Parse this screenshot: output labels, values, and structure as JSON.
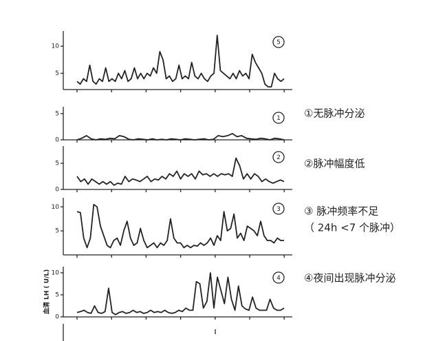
{
  "chart_data": [
    {
      "type": "line",
      "panel_label": "5",
      "ylim": [
        2,
        12.8
      ],
      "yticks": [
        5,
        10
      ],
      "series": [
        {
          "color": "#222",
          "values": [
            3.5,
            3,
            4,
            3.5,
            6.5,
            3.5,
            3,
            4,
            3.5,
            6,
            3.5,
            4,
            3.5,
            5,
            4,
            5.5,
            3.5,
            4,
            6,
            4,
            5,
            4,
            5,
            4.5,
            6,
            5,
            9,
            7.5,
            4,
            4.5,
            3.5,
            4,
            6.5,
            4,
            4.5,
            4,
            7,
            4.5,
            4,
            5,
            4,
            3.5,
            4.5,
            5,
            12,
            5.5,
            5,
            4.5,
            4,
            5,
            4,
            5.5,
            4.5,
            5,
            4,
            8.5,
            7,
            6,
            5,
            3,
            2.5,
            2.5,
            5,
            4,
            3.5,
            4
          ]
        }
      ]
    },
    {
      "type": "line",
      "panel_label": "1",
      "ylim": [
        0,
        6.3
      ],
      "yticks": [
        0,
        5
      ],
      "annotations": [
        "①无脉冲分泌"
      ],
      "series": [
        {
          "color": "#222",
          "values": [
            0,
            0.3,
            0.8,
            0.2,
            0,
            0.2,
            0.1,
            0.3,
            0.2,
            0.8,
            0.6,
            0.1,
            0,
            0.2,
            0.1,
            0,
            0.2,
            0,
            0.1,
            0,
            0.2,
            0.1,
            0,
            0.2,
            0.1,
            0,
            0.1,
            0.2,
            0,
            0.1,
            0.8,
            0.6,
            0.8,
            1.2,
            0.6,
            0.8,
            0.3,
            0.2,
            0.1,
            0.3,
            0.2,
            0,
            0.3,
            0.2,
            0
          ]
        }
      ]
    },
    {
      "type": "line",
      "panel_label": "2",
      "ylim": [
        0,
        8.3
      ],
      "yticks": [
        0,
        5
      ],
      "annotations": [
        "②脉冲幅度低"
      ],
      "series": [
        {
          "color": "#222",
          "values": [
            2.5,
            1.5,
            2,
            1,
            2,
            1.5,
            1,
            1.5,
            1,
            1.5,
            0.8,
            1.2,
            1,
            2.5,
            1.5,
            2,
            1.8,
            1.5,
            2,
            2.5,
            1.5,
            2,
            1.8,
            2.5,
            2,
            3,
            2.5,
            3.5,
            2,
            3,
            2.5,
            3,
            2,
            3.5,
            2.8,
            3,
            2.5,
            3,
            2.5,
            3,
            2.8,
            3,
            2.5,
            6,
            4.5,
            2,
            3,
            2,
            3,
            2.5,
            1.5,
            2,
            1.5,
            1.2,
            1.5,
            1.8,
            1.5
          ]
        }
      ]
    },
    {
      "type": "line",
      "panel_label": "3",
      "ylim": [
        0,
        11.9
      ],
      "yticks": [
        5,
        10
      ],
      "annotations": [
        "③ 脉冲频率不足",
        "（ 24h <7 个脉冲）"
      ],
      "series": [
        {
          "color": "#222",
          "values": [
            9,
            8.8,
            3.5,
            1.5,
            3.5,
            10.5,
            10,
            6,
            4,
            2,
            1.5,
            3,
            3.5,
            2,
            5,
            7,
            3.5,
            2,
            2.5,
            5.5,
            3,
            1.5,
            2,
            2.5,
            1.5,
            2.5,
            2,
            3,
            7.5,
            3.5,
            2.5,
            2.5,
            1.5,
            2,
            1.5,
            2,
            1.8,
            2.5,
            2,
            2.5,
            3.5,
            2,
            4,
            3,
            9,
            5,
            5.5,
            8.5,
            3.5,
            4.5,
            3,
            6,
            5.5,
            5,
            4,
            7,
            4,
            3,
            3,
            2.5,
            3.5,
            3,
            3
          ]
        }
      ]
    },
    {
      "type": "line",
      "panel_label": "4",
      "ylim": [
        0,
        11.4
      ],
      "yticks": [
        0,
        5,
        10
      ],
      "ylabel": "血清 LH ( U/L)",
      "annotations": [
        "④夜间出现脉冲分泌"
      ],
      "series": [
        {
          "color": "#222",
          "values": [
            1,
            1.2,
            1.5,
            1,
            0.8,
            2.5,
            1,
            0.8,
            1.2,
            6.5,
            1,
            0.5,
            1,
            1.2,
            0.8,
            1,
            1.5,
            1,
            1.2,
            0.8,
            1,
            1.5,
            1,
            1.2,
            1,
            1.5,
            1,
            0.8,
            1,
            1.5,
            1.2,
            2,
            1.5,
            1.5,
            8,
            7.5,
            2,
            3.5,
            10,
            2,
            9,
            6,
            3,
            9,
            4,
            1.5,
            7,
            2.5,
            1.8,
            1.5,
            4.5,
            2,
            1.5,
            1.5,
            1.5,
            4,
            2,
            1.5,
            1.5,
            2
          ]
        }
      ]
    }
  ]
}
